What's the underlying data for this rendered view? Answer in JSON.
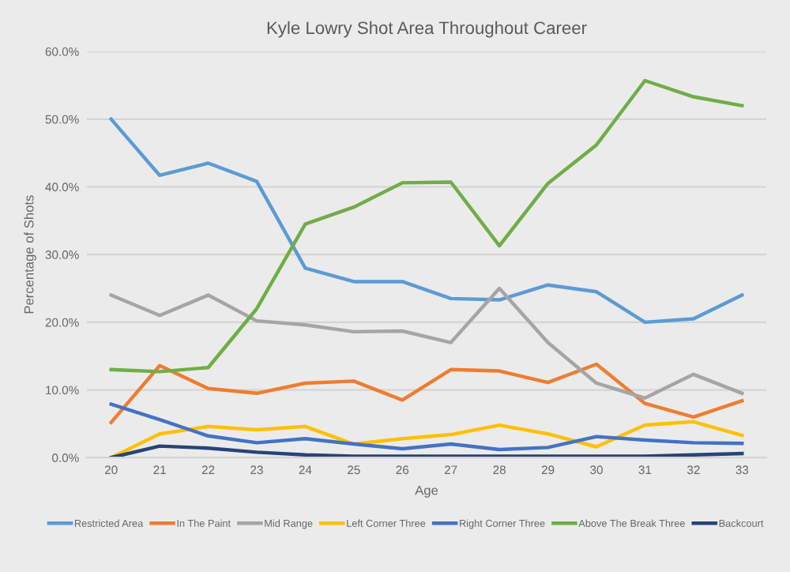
{
  "chart_data": {
    "type": "line",
    "title": "Kyle Lowry Shot Area Throughout Career",
    "xlabel": "Age",
    "ylabel": "Percentage of Shots",
    "categories": [
      "20",
      "21",
      "22",
      "23",
      "24",
      "25",
      "26",
      "27",
      "28",
      "29",
      "30",
      "31",
      "32",
      "33"
    ],
    "ylim": [
      0,
      60
    ],
    "yticks": [
      {
        "value": 0,
        "label": "0.0%"
      },
      {
        "value": 10,
        "label": "10.0%"
      },
      {
        "value": 20,
        "label": "20.0%"
      },
      {
        "value": 30,
        "label": "30.0%"
      },
      {
        "value": 40,
        "label": "40.0%"
      },
      {
        "value": 50,
        "label": "50.0%"
      },
      {
        "value": 60,
        "label": "60.0%"
      }
    ],
    "grid": "y",
    "legend": "bottom",
    "marker": "none",
    "line_style": "solid",
    "series": [
      {
        "name": "Restricted Area",
        "color": "#5b9bd5",
        "values": [
          50,
          41.7,
          43.5,
          40.8,
          28,
          26,
          26,
          23.5,
          23.3,
          25.5,
          24.5,
          20,
          20.5,
          24
        ]
      },
      {
        "name": "In The Paint",
        "color": "#ed7d31",
        "values": [
          5.2,
          13.6,
          10.2,
          9.5,
          11,
          11.3,
          8.5,
          13,
          12.8,
          11.1,
          13.8,
          8,
          6,
          8.4
        ]
      },
      {
        "name": "Mid Range",
        "color": "#a5a5a5",
        "values": [
          24,
          21,
          24,
          20.2,
          19.6,
          18.6,
          18.7,
          17,
          25,
          17,
          11,
          8.8,
          12.3,
          9.5
        ]
      },
      {
        "name": "Left Corner Three",
        "color": "#ffc000",
        "values": [
          0,
          3.5,
          4.6,
          4.1,
          4.6,
          2,
          2.8,
          3.4,
          4.8,
          3.5,
          1.6,
          4.8,
          5.3,
          3.3
        ]
      },
      {
        "name": "Right Corner Three",
        "color": "#4472c4",
        "values": [
          7.9,
          5.6,
          3.2,
          2.2,
          2.8,
          2,
          1.3,
          2,
          1.2,
          1.5,
          3.1,
          2.6,
          2.2,
          2.1
        ]
      },
      {
        "name": "Above The Break Three",
        "color": "#70ad47",
        "values": [
          13,
          12.7,
          13.3,
          22,
          34.5,
          37,
          40.6,
          40.7,
          31.3,
          40.5,
          46.2,
          55.7,
          53.3,
          52
        ]
      },
      {
        "name": "Backcourt",
        "color": "#264478",
        "values": [
          0,
          1.7,
          1.4,
          0.8,
          0.4,
          0.2,
          0.2,
          0.2,
          0.2,
          0.2,
          0.2,
          0.2,
          0.4,
          0.6
        ]
      }
    ]
  }
}
